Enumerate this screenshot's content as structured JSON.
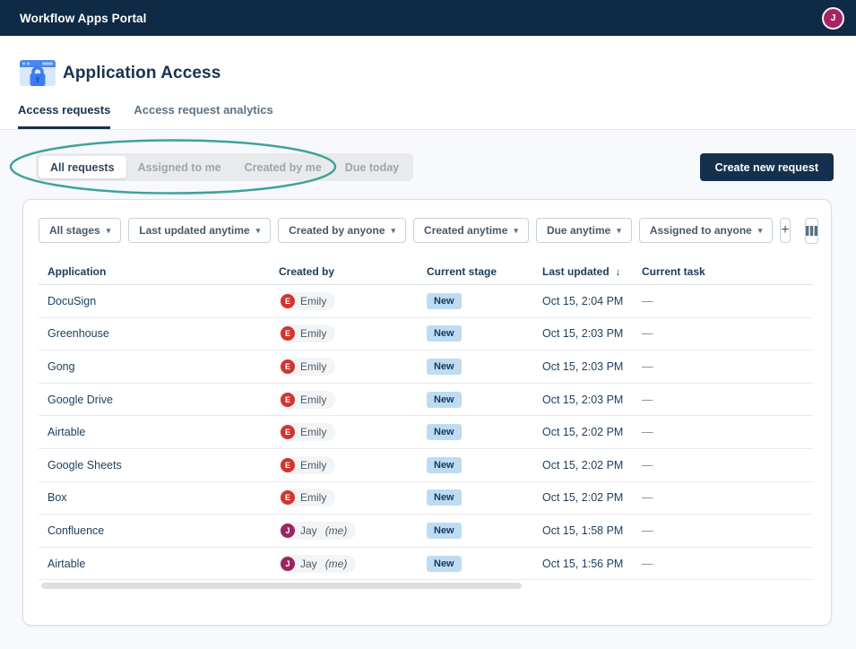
{
  "topbar": {
    "title": "Workflow Apps Portal",
    "avatar_initial": "J"
  },
  "header": {
    "title": "Application Access"
  },
  "tabs": [
    {
      "label": "Access requests",
      "active": true
    },
    {
      "label": "Access request analytics",
      "active": false
    }
  ],
  "quick_filters": [
    {
      "label": "All requests",
      "active": true
    },
    {
      "label": "Assigned to me",
      "active": false
    },
    {
      "label": "Created by me",
      "active": false
    },
    {
      "label": "Due today",
      "active": false
    }
  ],
  "create_button_label": "Create new request",
  "filter_chips": [
    {
      "label": "All stages"
    },
    {
      "label": "Last updated anytime"
    },
    {
      "label": "Created by anyone"
    },
    {
      "label": "Created anytime"
    },
    {
      "label": "Due anytime"
    },
    {
      "label": "Assigned to anyone"
    }
  ],
  "add_filter_label": "+",
  "table": {
    "columns": [
      {
        "label": "Application"
      },
      {
        "label": "Created by"
      },
      {
        "label": "Current stage"
      },
      {
        "label": "Last updated",
        "sort_arrow": "↓"
      },
      {
        "label": "Current task"
      }
    ],
    "rows": [
      {
        "application": "DocuSign",
        "creator": "Emily",
        "creator_initial": "E",
        "creator_color": "#d23430",
        "is_me": false,
        "me_suffix": "",
        "stage": "New",
        "last_updated": "Oct 15, 2:04 PM",
        "current_task": "—"
      },
      {
        "application": "Greenhouse",
        "creator": "Emily",
        "creator_initial": "E",
        "creator_color": "#d23430",
        "is_me": false,
        "me_suffix": "",
        "stage": "New",
        "last_updated": "Oct 15, 2:03 PM",
        "current_task": "—"
      },
      {
        "application": "Gong",
        "creator": "Emily",
        "creator_initial": "E",
        "creator_color": "#d23430",
        "is_me": false,
        "me_suffix": "",
        "stage": "New",
        "last_updated": "Oct 15, 2:03 PM",
        "current_task": "—"
      },
      {
        "application": "Google Drive",
        "creator": "Emily",
        "creator_initial": "E",
        "creator_color": "#d23430",
        "is_me": false,
        "me_suffix": "",
        "stage": "New",
        "last_updated": "Oct 15, 2:03 PM",
        "current_task": "—"
      },
      {
        "application": "Airtable",
        "creator": "Emily",
        "creator_initial": "E",
        "creator_color": "#d23430",
        "is_me": false,
        "me_suffix": "",
        "stage": "New",
        "last_updated": "Oct 15, 2:02 PM",
        "current_task": "—"
      },
      {
        "application": "Google Sheets",
        "creator": "Emily",
        "creator_initial": "E",
        "creator_color": "#d23430",
        "is_me": false,
        "me_suffix": "",
        "stage": "New",
        "last_updated": "Oct 15, 2:02 PM",
        "current_task": "—"
      },
      {
        "application": "Box",
        "creator": "Emily",
        "creator_initial": "E",
        "creator_color": "#d23430",
        "is_me": false,
        "me_suffix": "",
        "stage": "New",
        "last_updated": "Oct 15, 2:02 PM",
        "current_task": "—"
      },
      {
        "application": "Confluence",
        "creator": "Jay",
        "creator_initial": "J",
        "creator_color": "#9a2562",
        "is_me": true,
        "me_suffix": "(me)",
        "stage": "New",
        "last_updated": "Oct 15, 1:58 PM",
        "current_task": "—"
      },
      {
        "application": "Airtable",
        "creator": "Jay",
        "creator_initial": "J",
        "creator_color": "#9a2562",
        "is_me": true,
        "me_suffix": "(me)",
        "stage": "New",
        "last_updated": "Oct 15, 1:56 PM",
        "current_task": "—"
      }
    ]
  },
  "annotation": {
    "type": "ellipse",
    "color": "#3fa29b"
  },
  "colors": {
    "topbar_bg": "#0e2a45",
    "accent_navy": "#14304d",
    "badge_bg": "#bddcf3",
    "badge_text": "#16385c",
    "emily_avatar": "#d23430",
    "jay_avatar": "#9a2562",
    "topbar_avatar": "#a62465",
    "annotation_teal": "#3fa29b"
  }
}
